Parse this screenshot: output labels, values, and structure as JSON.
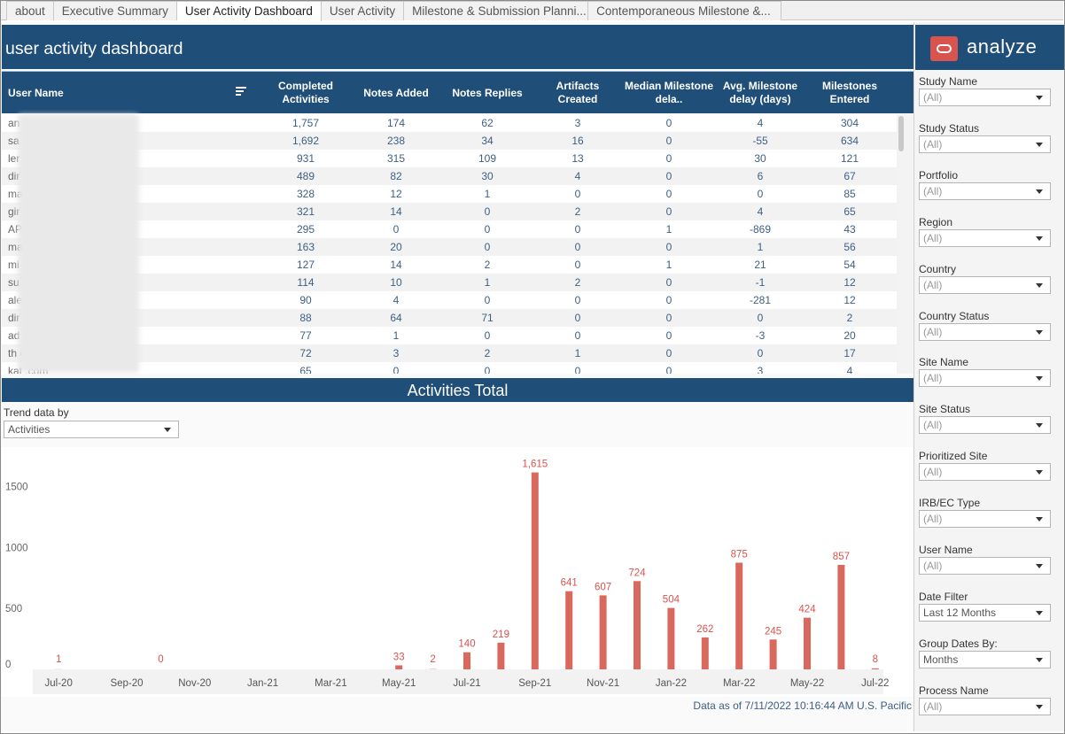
{
  "tabs": [
    "about",
    "Executive Summary",
    "User Activity Dashboard",
    "User Activity",
    "Milestone & Submission Planni...",
    "Contemporaneous Milestone &..."
  ],
  "active_tab": "User Activity Dashboard",
  "page_title": "user activity dashboard",
  "table": {
    "columns": [
      "User Name",
      "Completed Activities",
      "Notes Added",
      "Notes Replies",
      "Artifacts Created",
      "Median Milestone dela..",
      "Avg. Milestone delay (days)",
      "Milestones Entered"
    ],
    "rows": [
      [
        "an",
        "1,757",
        "174",
        "62",
        "3",
        "0",
        "4",
        "304"
      ],
      [
        "sa",
        "1,692",
        "238",
        "34",
        "16",
        "0",
        "-55",
        "634"
      ],
      [
        "ler",
        "931",
        "315",
        "109",
        "13",
        "0",
        "30",
        "121"
      ],
      [
        "dir",
        "489",
        "82",
        "30",
        "4",
        "0",
        "6",
        "67"
      ],
      [
        "ma                         cle.com",
        "328",
        "12",
        "1",
        "0",
        "0",
        "0",
        "85"
      ],
      [
        "gir",
        "321",
        "14",
        "0",
        "2",
        "0",
        "4",
        "65"
      ],
      [
        "AP",
        "295",
        "0",
        "0",
        "0",
        "1",
        "-869",
        "43"
      ],
      [
        "ma",
        "163",
        "20",
        "0",
        "0",
        "0",
        "1",
        "56"
      ],
      [
        "mi",
        "127",
        "14",
        "2",
        "0",
        "1",
        "21",
        "54"
      ],
      [
        "su                          m",
        "114",
        "10",
        "1",
        "2",
        "0",
        "-1",
        "12"
      ],
      [
        "ale",
        "90",
        "4",
        "0",
        "0",
        "0",
        "-281",
        "12"
      ],
      [
        "dir",
        "88",
        "64",
        "71",
        "0",
        "0",
        "0",
        "2"
      ],
      [
        "ad                          m",
        "77",
        "1",
        "0",
        "0",
        "0",
        "-3",
        "20"
      ],
      [
        "th                          om",
        "72",
        "3",
        "2",
        "1",
        "0",
        "0",
        "17"
      ],
      [
        "kat                  .com",
        "65",
        "0",
        "0",
        "0",
        "0",
        "3",
        "4"
      ]
    ]
  },
  "activities": {
    "title": "Activities Total",
    "trend_label": "Trend data by",
    "trend_value": "Activities",
    "footer": "Data as of 7/11/2022 10:16:44 AM U.S. Pacific"
  },
  "chart_data": {
    "type": "bar",
    "categories": [
      "Jul-20",
      "Aug-20",
      "Sep-20",
      "Oct-20",
      "Nov-20",
      "Dec-20",
      "Jan-21",
      "Feb-21",
      "Mar-21",
      "Apr-21",
      "May-21",
      "Jun-21",
      "Jul-21",
      "Aug-21",
      "Sep-21",
      "Oct-21",
      "Nov-21",
      "Dec-21",
      "Jan-22",
      "Feb-22",
      "Mar-22",
      "Apr-22",
      "May-22",
      "Jun-22",
      "Jul-22"
    ],
    "values": [
      1,
      null,
      null,
      0,
      null,
      null,
      null,
      null,
      null,
      null,
      33,
      2,
      140,
      219,
      1615,
      641,
      607,
      724,
      504,
      262,
      875,
      245,
      424,
      857,
      8
    ],
    "x_tick_labels": [
      "Jul-20",
      "Sep-20",
      "Nov-20",
      "Jan-21",
      "Mar-21",
      "May-21",
      "Jul-21",
      "Sep-21",
      "Nov-21",
      "Jan-22",
      "Mar-22",
      "May-22",
      "Jul-22"
    ],
    "y_ticks": [
      0,
      500,
      1000,
      1500
    ],
    "ylim": [
      0,
      1750
    ],
    "title": "Activities Total",
    "bar_color": "#d9695f",
    "label_color": "#d9534f",
    "grid": false
  },
  "logo": {
    "text": "analyze",
    "color": "#d9534f"
  },
  "filters": [
    {
      "label": "Study Name",
      "value": "(All)"
    },
    {
      "label": "Study Status",
      "value": "(All)"
    },
    {
      "label": "Portfolio",
      "value": "(All)"
    },
    {
      "label": "Region",
      "value": "(All)"
    },
    {
      "label": "Country",
      "value": "(All)"
    },
    {
      "label": "Country Status",
      "value": "(All)"
    },
    {
      "label": "Site Name",
      "value": "(All)"
    },
    {
      "label": "Site Status",
      "value": "(All)"
    },
    {
      "label": "Prioritized Site",
      "value": "(All)"
    },
    {
      "label": "IRB/EC Type",
      "value": "(All)"
    },
    {
      "label": "User Name",
      "value": "(All)"
    },
    {
      "label": "Date Filter",
      "value": "Last 12 Months"
    },
    {
      "label": "Group Dates By:",
      "value": "Months"
    },
    {
      "label": "Process Name",
      "value": "(All)"
    }
  ],
  "colors": {
    "header": "#1f4e79",
    "accent": "#d9534f",
    "cell_text": "#3d5f84"
  }
}
